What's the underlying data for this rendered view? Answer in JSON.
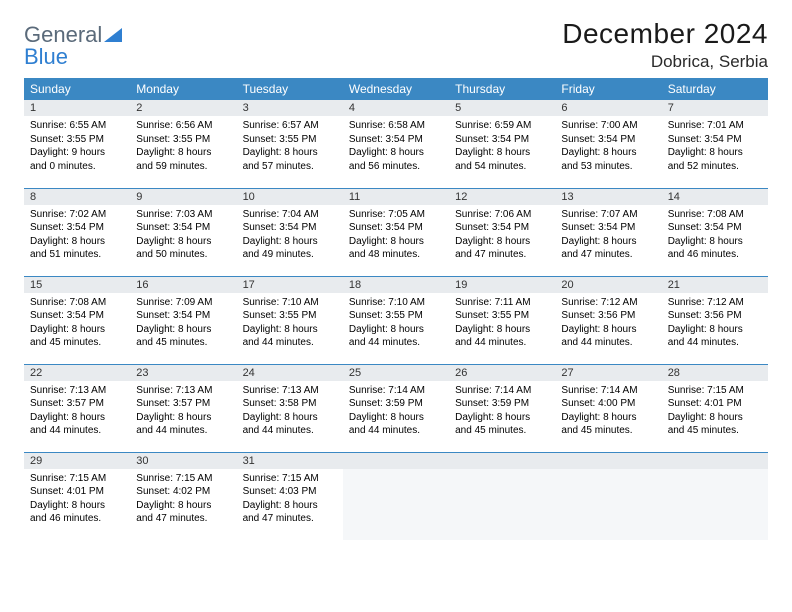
{
  "brand": {
    "line1": "General",
    "line2": "Blue"
  },
  "header": {
    "month_title": "December 2024",
    "location": "Dobrica, Serbia"
  },
  "colors": {
    "header_bg": "#3b88c3",
    "header_text": "#ffffff",
    "daynum_bg": "#e8ebee",
    "row_divider": "#3b88c3",
    "empty_bg": "#f5f7f9",
    "logo_gray": "#5a6a7a",
    "logo_blue": "#2f7fd1"
  },
  "weekdays": [
    "Sunday",
    "Monday",
    "Tuesday",
    "Wednesday",
    "Thursday",
    "Friday",
    "Saturday"
  ],
  "days": [
    {
      "n": "1",
      "sr": "6:55 AM",
      "ss": "3:55 PM",
      "dh": "9",
      "dm": "0"
    },
    {
      "n": "2",
      "sr": "6:56 AM",
      "ss": "3:55 PM",
      "dh": "8",
      "dm": "59"
    },
    {
      "n": "3",
      "sr": "6:57 AM",
      "ss": "3:55 PM",
      "dh": "8",
      "dm": "57"
    },
    {
      "n": "4",
      "sr": "6:58 AM",
      "ss": "3:54 PM",
      "dh": "8",
      "dm": "56"
    },
    {
      "n": "5",
      "sr": "6:59 AM",
      "ss": "3:54 PM",
      "dh": "8",
      "dm": "54"
    },
    {
      "n": "6",
      "sr": "7:00 AM",
      "ss": "3:54 PM",
      "dh": "8",
      "dm": "53"
    },
    {
      "n": "7",
      "sr": "7:01 AM",
      "ss": "3:54 PM",
      "dh": "8",
      "dm": "52"
    },
    {
      "n": "8",
      "sr": "7:02 AM",
      "ss": "3:54 PM",
      "dh": "8",
      "dm": "51"
    },
    {
      "n": "9",
      "sr": "7:03 AM",
      "ss": "3:54 PM",
      "dh": "8",
      "dm": "50"
    },
    {
      "n": "10",
      "sr": "7:04 AM",
      "ss": "3:54 PM",
      "dh": "8",
      "dm": "49"
    },
    {
      "n": "11",
      "sr": "7:05 AM",
      "ss": "3:54 PM",
      "dh": "8",
      "dm": "48"
    },
    {
      "n": "12",
      "sr": "7:06 AM",
      "ss": "3:54 PM",
      "dh": "8",
      "dm": "47"
    },
    {
      "n": "13",
      "sr": "7:07 AM",
      "ss": "3:54 PM",
      "dh": "8",
      "dm": "47"
    },
    {
      "n": "14",
      "sr": "7:08 AM",
      "ss": "3:54 PM",
      "dh": "8",
      "dm": "46"
    },
    {
      "n": "15",
      "sr": "7:08 AM",
      "ss": "3:54 PM",
      "dh": "8",
      "dm": "45"
    },
    {
      "n": "16",
      "sr": "7:09 AM",
      "ss": "3:54 PM",
      "dh": "8",
      "dm": "45"
    },
    {
      "n": "17",
      "sr": "7:10 AM",
      "ss": "3:55 PM",
      "dh": "8",
      "dm": "44"
    },
    {
      "n": "18",
      "sr": "7:10 AM",
      "ss": "3:55 PM",
      "dh": "8",
      "dm": "44"
    },
    {
      "n": "19",
      "sr": "7:11 AM",
      "ss": "3:55 PM",
      "dh": "8",
      "dm": "44"
    },
    {
      "n": "20",
      "sr": "7:12 AM",
      "ss": "3:56 PM",
      "dh": "8",
      "dm": "44"
    },
    {
      "n": "21",
      "sr": "7:12 AM",
      "ss": "3:56 PM",
      "dh": "8",
      "dm": "44"
    },
    {
      "n": "22",
      "sr": "7:13 AM",
      "ss": "3:57 PM",
      "dh": "8",
      "dm": "44"
    },
    {
      "n": "23",
      "sr": "7:13 AM",
      "ss": "3:57 PM",
      "dh": "8",
      "dm": "44"
    },
    {
      "n": "24",
      "sr": "7:13 AM",
      "ss": "3:58 PM",
      "dh": "8",
      "dm": "44"
    },
    {
      "n": "25",
      "sr": "7:14 AM",
      "ss": "3:59 PM",
      "dh": "8",
      "dm": "44"
    },
    {
      "n": "26",
      "sr": "7:14 AM",
      "ss": "3:59 PM",
      "dh": "8",
      "dm": "45"
    },
    {
      "n": "27",
      "sr": "7:14 AM",
      "ss": "4:00 PM",
      "dh": "8",
      "dm": "45"
    },
    {
      "n": "28",
      "sr": "7:15 AM",
      "ss": "4:01 PM",
      "dh": "8",
      "dm": "45"
    },
    {
      "n": "29",
      "sr": "7:15 AM",
      "ss": "4:01 PM",
      "dh": "8",
      "dm": "46"
    },
    {
      "n": "30",
      "sr": "7:15 AM",
      "ss": "4:02 PM",
      "dh": "8",
      "dm": "47"
    },
    {
      "n": "31",
      "sr": "7:15 AM",
      "ss": "4:03 PM",
      "dh": "8",
      "dm": "47"
    }
  ],
  "labels": {
    "sunrise_prefix": "Sunrise: ",
    "sunset_prefix": "Sunset: ",
    "daylight_prefix": "Daylight: ",
    "hours_word": " hours",
    "and_word": "and ",
    "minutes_word": " minutes."
  },
  "layout": {
    "first_weekday_index": 0,
    "total_cells": 35,
    "columns": 7
  }
}
